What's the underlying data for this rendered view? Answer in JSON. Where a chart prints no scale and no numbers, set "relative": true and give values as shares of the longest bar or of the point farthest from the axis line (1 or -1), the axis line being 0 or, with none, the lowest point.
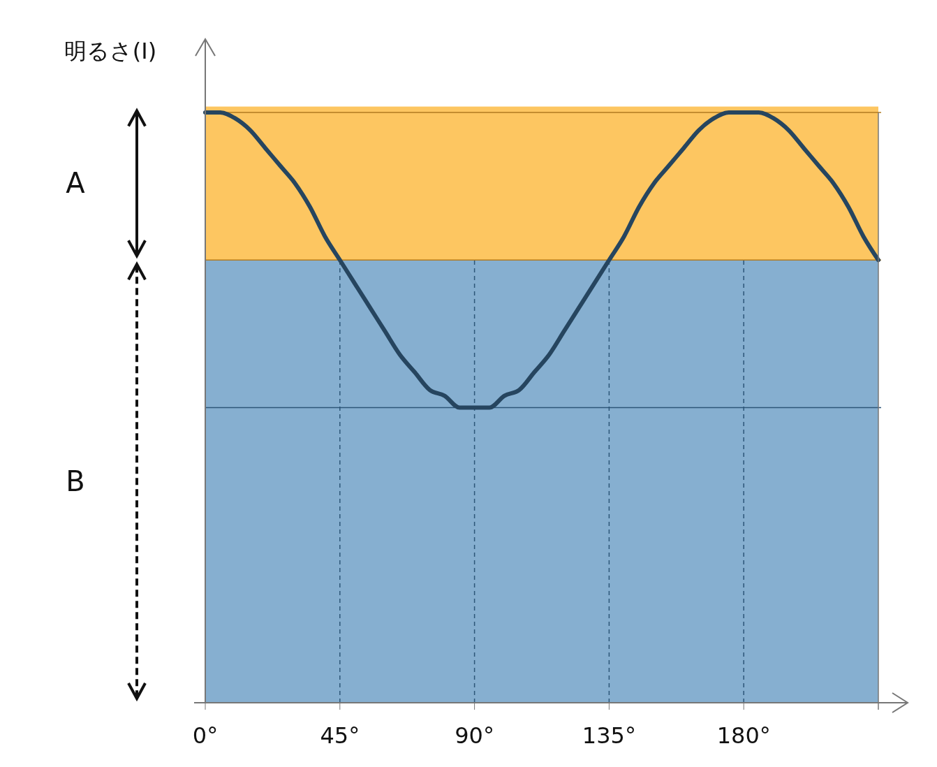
{
  "chart_data": {
    "type": "line",
    "relative": true,
    "ylabel": "明るさ(I)",
    "x": [
      0,
      5,
      10,
      15,
      20,
      25,
      30,
      35,
      40,
      45,
      50,
      55,
      60,
      65,
      70,
      75,
      80,
      85,
      90,
      95,
      100,
      105,
      110,
      115,
      120,
      125,
      130,
      135,
      140,
      145,
      150,
      155,
      160,
      165,
      170,
      175,
      180,
      185,
      190,
      195,
      200,
      205,
      210,
      215,
      220,
      225
    ],
    "series": [
      {
        "color": "#26455f",
        "values": [
          1,
          1,
          0.99,
          0.97,
          0.94,
          0.91,
          0.88,
          0.84,
          0.79,
          0.75,
          0.71,
          0.67,
          0.63,
          0.59,
          0.56,
          0.53,
          0.52,
          0.5,
          0.5,
          0.5,
          0.52,
          0.53,
          0.56,
          0.59,
          0.63,
          0.67,
          0.71,
          0.75,
          0.79,
          0.84,
          0.88,
          0.91,
          0.94,
          0.97,
          0.99,
          1,
          1,
          1,
          0.99,
          0.97,
          0.94,
          0.91,
          0.88,
          0.84,
          0.79,
          0.75
        ]
      }
    ],
    "xlim": [
      0,
      225
    ],
    "xticks": [
      {
        "value": 0,
        "label": "0°"
      },
      {
        "value": 45,
        "label": "45°"
      },
      {
        "value": 90,
        "label": "90°"
      },
      {
        "value": 135,
        "label": "135°"
      },
      {
        "value": 180,
        "label": "180°"
      }
    ],
    "annotations": [
      "A",
      "B"
    ],
    "bands": [
      {
        "axis": "y",
        "from": 0.75,
        "to": 1.01,
        "color": "#fdc661"
      },
      {
        "axis": "y",
        "from": 0,
        "to": 0.75,
        "color": "#86afd0"
      }
    ],
    "ref_lines": [
      {
        "axis": "y",
        "value": 1,
        "color": "#b07a20",
        "line_style": "solid"
      },
      {
        "axis": "y",
        "value": 0.75,
        "color": "#b07a20",
        "line_style": "solid"
      },
      {
        "axis": "y",
        "value": 0.5,
        "color": "#2d5678",
        "line_style": "solid"
      },
      {
        "axis": "x",
        "value": 45,
        "color": "#2d5678",
        "line_style": "dashed"
      },
      {
        "axis": "x",
        "value": 90,
        "color": "#2d5678",
        "line_style": "dashed"
      },
      {
        "axis": "x",
        "value": 135,
        "color": "#2d5678",
        "line_style": "dashed"
      },
      {
        "axis": "x",
        "value": 180,
        "color": "#2d5678",
        "line_style": "dashed"
      }
    ],
    "line_style": "solid"
  }
}
